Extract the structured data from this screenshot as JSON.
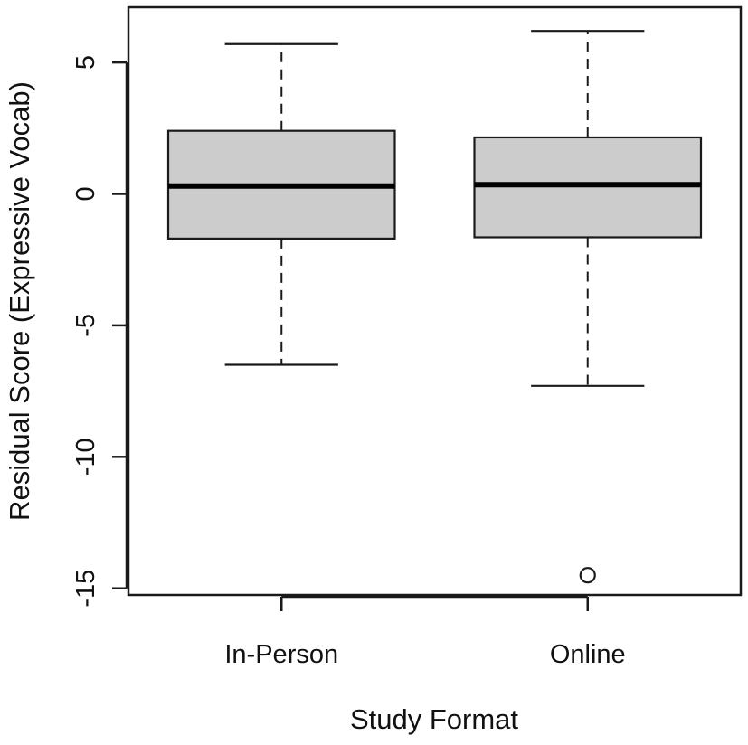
{
  "chart_data": {
    "type": "boxplot",
    "xlabel": "Study Format",
    "ylabel": "Residual Score (Expressive Vocab)",
    "ylim": [
      -15.25,
      7.1
    ],
    "y_ticks": [
      5,
      0,
      -5,
      -10,
      -15
    ],
    "grid": false,
    "legend": "none",
    "colors": {
      "box_fill": "#cccccc",
      "stroke": "#1a1a1a"
    },
    "categories": [
      "In-Person",
      "Online"
    ],
    "boxes": [
      {
        "category": "In-Person",
        "whisker_low": -6.5,
        "q1": -1.7,
        "median": 0.3,
        "q3": 2.4,
        "whisker_high": 5.7,
        "outliers": []
      },
      {
        "category": "Online",
        "whisker_low": -7.3,
        "q1": -1.65,
        "median": 0.35,
        "q3": 2.15,
        "whisker_high": 6.2,
        "outliers": [
          -14.5
        ]
      }
    ]
  }
}
